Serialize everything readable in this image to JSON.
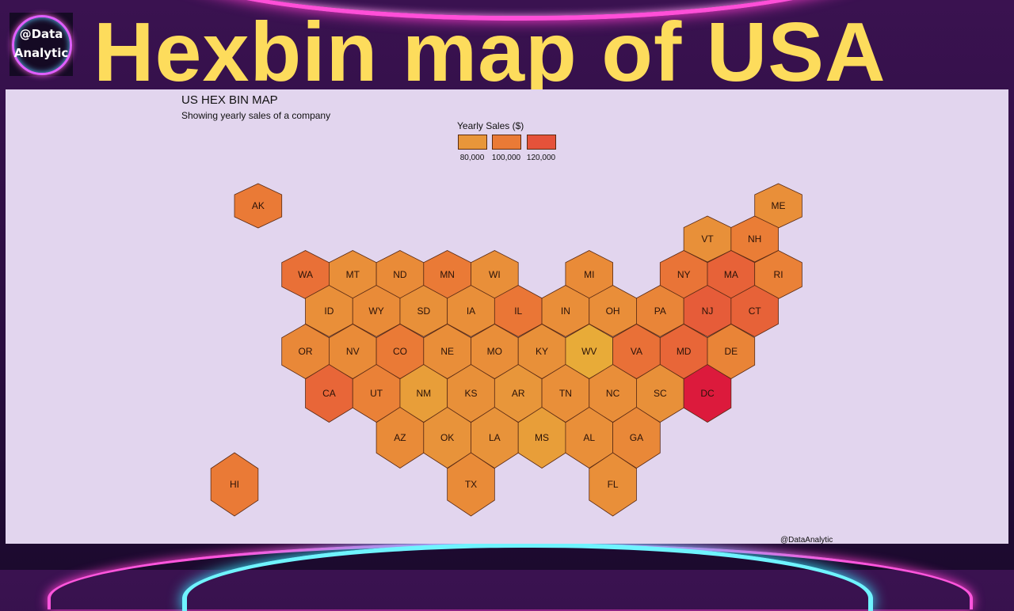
{
  "banner": {
    "title": "Hexbin map of USA",
    "logo_line1": "@Data",
    "logo_line2": "Analytic"
  },
  "map": {
    "title": "US HEX BIN MAP",
    "subtitle": "Showing yearly sales of a company",
    "credit": "@DataAnalytic",
    "legend": {
      "title": "Yearly Sales ($)",
      "items": [
        {
          "label": "80,000",
          "value": 80000,
          "color": "#e8963a"
        },
        {
          "label": "100,000",
          "value": 100000,
          "color": "#ea7a36"
        },
        {
          "label": "120,000",
          "value": 120000,
          "color": "#e5523a"
        }
      ]
    },
    "color_scale": [
      {
        "value": 75000,
        "color": "#e8ab38"
      },
      {
        "value": 80000,
        "color": "#e8963a"
      },
      {
        "value": 100000,
        "color": "#ea7a36"
      },
      {
        "value": 120000,
        "color": "#e5523a"
      },
      {
        "value": 135000,
        "color": "#dc1a3c"
      }
    ],
    "states": [
      {
        "abbr": "AK",
        "sales": 100000
      },
      {
        "abbr": "ME",
        "sales": 85000
      },
      {
        "abbr": "VT",
        "sales": 84000
      },
      {
        "abbr": "NH",
        "sales": 98000
      },
      {
        "abbr": "WA",
        "sales": 105000
      },
      {
        "abbr": "MT",
        "sales": 85000
      },
      {
        "abbr": "ND",
        "sales": 88000
      },
      {
        "abbr": "MN",
        "sales": 100000
      },
      {
        "abbr": "WI",
        "sales": 85000
      },
      {
        "abbr": "MI",
        "sales": 88000
      },
      {
        "abbr": "NY",
        "sales": 103000
      },
      {
        "abbr": "MA",
        "sales": 112000
      },
      {
        "abbr": "RI",
        "sales": 95000
      },
      {
        "abbr": "ID",
        "sales": 85000
      },
      {
        "abbr": "WY",
        "sales": 88000
      },
      {
        "abbr": "SD",
        "sales": 84000
      },
      {
        "abbr": "IA",
        "sales": 85000
      },
      {
        "abbr": "IL",
        "sales": 102000
      },
      {
        "abbr": "IN",
        "sales": 86000
      },
      {
        "abbr": "OH",
        "sales": 86000
      },
      {
        "abbr": "PA",
        "sales": 92000
      },
      {
        "abbr": "NJ",
        "sales": 115000
      },
      {
        "abbr": "CT",
        "sales": 112000
      },
      {
        "abbr": "OR",
        "sales": 90000
      },
      {
        "abbr": "NV",
        "sales": 88000
      },
      {
        "abbr": "CO",
        "sales": 100000
      },
      {
        "abbr": "NE",
        "sales": 86000
      },
      {
        "abbr": "MO",
        "sales": 86000
      },
      {
        "abbr": "KY",
        "sales": 84000
      },
      {
        "abbr": "WV",
        "sales": 75000
      },
      {
        "abbr": "VA",
        "sales": 105000
      },
      {
        "abbr": "MD",
        "sales": 110000
      },
      {
        "abbr": "DE",
        "sales": 93000
      },
      {
        "abbr": "CA",
        "sales": 110000
      },
      {
        "abbr": "UT",
        "sales": 95000
      },
      {
        "abbr": "NM",
        "sales": 78000
      },
      {
        "abbr": "KS",
        "sales": 84000
      },
      {
        "abbr": "AR",
        "sales": 80000
      },
      {
        "abbr": "TN",
        "sales": 85000
      },
      {
        "abbr": "NC",
        "sales": 86000
      },
      {
        "abbr": "SC",
        "sales": 84000
      },
      {
        "abbr": "DC",
        "sales": 135000
      },
      {
        "abbr": "AZ",
        "sales": 88000
      },
      {
        "abbr": "OK",
        "sales": 82000
      },
      {
        "abbr": "LA",
        "sales": 82000
      },
      {
        "abbr": "MS",
        "sales": 78000
      },
      {
        "abbr": "AL",
        "sales": 85000
      },
      {
        "abbr": "GA",
        "sales": 90000
      },
      {
        "abbr": "HI",
        "sales": 100000
      },
      {
        "abbr": "TX",
        "sales": 88000
      },
      {
        "abbr": "FL",
        "sales": 85000
      }
    ]
  }
}
